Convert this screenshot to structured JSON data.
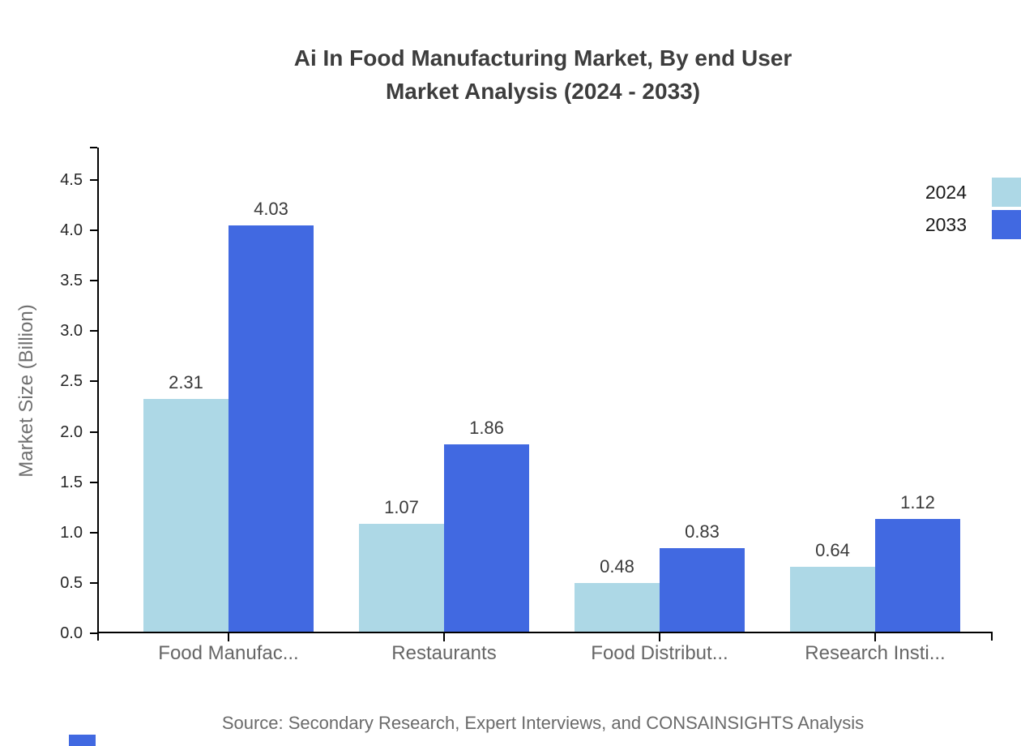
{
  "title": {
    "line1": "Ai In Food Manufacturing Market, By end User",
    "line2": "Market Analysis (2024 - 2033)"
  },
  "source_note": "Source: Secondary Research, Expert Interviews, and CONSAINSIGHTS Analysis",
  "legend": {
    "items": [
      {
        "label": "2024",
        "color": "#ADD8E6"
      },
      {
        "label": "2033",
        "color": "#4169E1"
      }
    ]
  },
  "colors": {
    "series_2024": "#ADD8E6",
    "series_2033": "#4169E1",
    "axis": "#000000",
    "title_text": "#3d3d3d",
    "tick_text": "#262626",
    "category_text": "#666666",
    "value_text": "#3a3a3a",
    "axis_title_text": "#707070",
    "source_text": "#6a6a6a",
    "brand": "#4169E1"
  },
  "chart_data": {
    "type": "bar",
    "title": "Ai In Food Manufacturing Market, By end User Market Analysis (2024 - 2033)",
    "categories": [
      "Food Manufac...",
      "Restaurants",
      "Food Distribut...",
      "Research Insti..."
    ],
    "series": [
      {
        "name": "2024",
        "color": "#ADD8E6",
        "values": [
          2.31,
          1.07,
          0.48,
          0.64
        ]
      },
      {
        "name": "2033",
        "color": "#4169E1",
        "values": [
          4.03,
          1.86,
          0.83,
          1.12
        ]
      }
    ],
    "xlabel": "",
    "ylabel": "Market Size (Billion)",
    "ylim": [
      0,
      4.5
    ],
    "yticks": [
      "0.0",
      "0.5",
      "1.0",
      "1.5",
      "2.0",
      "2.5",
      "3.0",
      "3.5",
      "4.0",
      "4.5"
    ],
    "grid": false,
    "legend_position": "top-right",
    "value_labels": true,
    "value_label_format": "0.00"
  }
}
